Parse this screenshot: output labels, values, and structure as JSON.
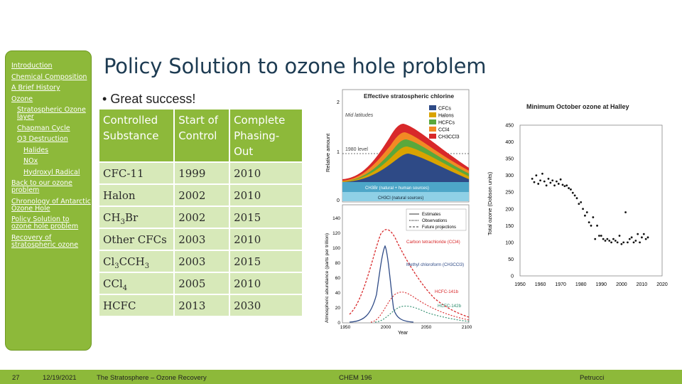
{
  "sidebar": {
    "items": [
      {
        "label": "Introduction",
        "level": 0
      },
      {
        "label": "Chemical Composition",
        "level": 0
      },
      {
        "label": "A Brief History",
        "level": 0
      },
      {
        "label": "Ozone",
        "level": 0
      },
      {
        "label": "Stratospheric Ozone layer",
        "level": 1
      },
      {
        "label": "Chapman Cycle",
        "level": 1
      },
      {
        "label": "O3 Destruction",
        "level": 1
      },
      {
        "label": "Halides",
        "level": 2
      },
      {
        "label": "NOx",
        "level": 2
      },
      {
        "label": "Hydroxyl Radical",
        "level": 2
      },
      {
        "label": "Back to our ozone problem",
        "level": 0
      },
      {
        "label": "Chronology of Antarctic Ozone Hole",
        "level": 0
      },
      {
        "label": "Policy Solution to ozone hole problem",
        "level": 0
      },
      {
        "label": "Recovery of stratospheric ozone",
        "level": 0
      }
    ]
  },
  "slide": {
    "title": "Policy Solution to ozone hole problem",
    "bullet": "Great success!"
  },
  "table": {
    "headers": [
      "Controlled Substance",
      "Start of Control",
      "Complete Phasing-Out"
    ],
    "rows": [
      {
        "pre": "CFC-11",
        "sub": "",
        "post": "",
        "start": "1999",
        "end": "2010"
      },
      {
        "pre": "Halon",
        "sub": "",
        "post": "",
        "start": "2002",
        "end": "2010"
      },
      {
        "pre": "CH",
        "sub": "3",
        "post": "Br",
        "start": "2002",
        "end": "2015"
      },
      {
        "pre": "Other CFCs",
        "sub": "",
        "post": "",
        "start": "2003",
        "end": "2010"
      },
      {
        "pre": "Cl",
        "sub": "3",
        "post": "CCH",
        "sub2": "3",
        "start": "2003",
        "end": "2015"
      },
      {
        "pre": "CCl",
        "sub": "4",
        "post": "",
        "start": "2005",
        "end": "2010"
      },
      {
        "pre": "HCFC",
        "sub": "",
        "post": "",
        "start": "2013",
        "end": "2030"
      }
    ]
  },
  "figure_chlorine": {
    "title": "Effective stratospheric chlorine",
    "ylabel": "Relative amount",
    "annotation": "Mid latitudes",
    "level_label": "1980 level",
    "legend": [
      "CFCs",
      "Halons",
      "HCFCs",
      "CCl4",
      "CH3CCl3"
    ],
    "legend_colors": [
      "#2e4a86",
      "#d9a300",
      "#5aa83c",
      "#f28a24",
      "#d8282a"
    ],
    "band1": "CH3Br (natural + human sources)",
    "band2": "CH3Cl (natural sources)",
    "yticks": [
      "2",
      "1",
      "0"
    ]
  },
  "figure_abundance": {
    "ylabel": "Atmospheric abundance (parts per trillion)",
    "xlabel": "Year",
    "yticks": [
      "0",
      "20",
      "40",
      "60",
      "80",
      "100",
      "120",
      "140"
    ],
    "xticks": [
      "1950",
      "2000",
      "2050",
      "2100"
    ],
    "legend": [
      "Estimates",
      "Observations",
      "Future projections"
    ],
    "label_ccl4": "Carbon tetrachloride (CCl4)",
    "label_mc": "Methyl chloroform (CH3CCl3)",
    "label_141b": "HCFC-141b",
    "label_142b": "HCFC-142b"
  },
  "figure_halley": {
    "title": "Minimum October ozone at Halley",
    "ylabel": "Total ozone (Dobson units)",
    "chart_data": {
      "type": "scatter",
      "title": "Minimum October ozone at Halley",
      "ylabel": "Total ozone (Dobson units)",
      "xlabel": "",
      "xlim": [
        1950,
        2020
      ],
      "ylim": [
        0,
        450
      ],
      "xticks": [
        1950,
        1960,
        1970,
        1980,
        1990,
        2000,
        2010,
        2020
      ],
      "yticks": [
        0,
        50,
        100,
        150,
        200,
        250,
        300,
        350,
        400,
        450
      ],
      "x": [
        1956,
        1957,
        1958,
        1959,
        1960,
        1961,
        1962,
        1963,
        1964,
        1965,
        1966,
        1967,
        1968,
        1969,
        1970,
        1971,
        1972,
        1973,
        1974,
        1975,
        1976,
        1977,
        1978,
        1979,
        1980,
        1981,
        1982,
        1983,
        1984,
        1985,
        1986,
        1987,
        1988,
        1989,
        1990,
        1991,
        1992,
        1993,
        1994,
        1995,
        1996,
        1997,
        1998,
        1999,
        2000,
        2001,
        2002,
        2003,
        2004,
        2005,
        2006,
        2007,
        2008,
        2009,
        2010,
        2011,
        2012,
        2013
      ],
      "y": [
        290,
        280,
        300,
        275,
        285,
        305,
        282,
        270,
        290,
        278,
        285,
        270,
        282,
        275,
        288,
        272,
        268,
        270,
        262,
        258,
        248,
        240,
        232,
        215,
        220,
        200,
        180,
        190,
        160,
        150,
        175,
        110,
        150,
        120,
        120,
        110,
        105,
        110,
        105,
        100,
        110,
        105,
        100,
        120,
        95,
        100,
        190,
        100,
        110,
        115,
        100,
        105,
        125,
        100,
        115,
        125,
        110,
        115
      ]
    }
  },
  "footer": {
    "page": "27",
    "date": "12/19/2021",
    "course_title": "The Stratosphere – Ozone Recovery",
    "course": "CHEM 196",
    "author": "Petrucci"
  }
}
